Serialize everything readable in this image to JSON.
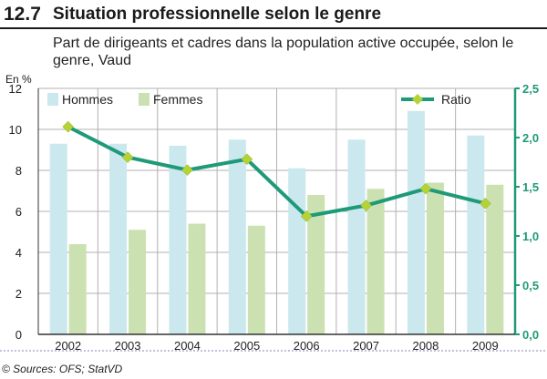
{
  "header": {
    "number": "12.7",
    "title": "Situation professionnelle selon le genre"
  },
  "subtitle": "Part de dirigeants et cadres dans la population active occupée, selon le genre, Vaud",
  "unit": "En %",
  "source": "© Sources: OFS; StatVD",
  "colors": {
    "hommes": "#cbe8ef",
    "femmes": "#cbe1b1",
    "ratio_line": "#1f9a78",
    "ratio_marker": "#b5d334",
    "right_axis": "#1f9a78",
    "dotted_rule": "#8080c0"
  },
  "chart_data": {
    "type": "bar",
    "categories": [
      "2002",
      "2003",
      "2004",
      "2005",
      "2006",
      "2007",
      "2008",
      "2009"
    ],
    "series": [
      {
        "name": "Hommes",
        "axis": "left",
        "values": [
          9.3,
          9.3,
          9.2,
          9.5,
          8.1,
          9.5,
          10.9,
          9.7
        ]
      },
      {
        "name": "Femmes",
        "axis": "left",
        "values": [
          4.4,
          5.1,
          5.4,
          5.3,
          6.8,
          7.1,
          7.4,
          7.3
        ]
      },
      {
        "name": "Ratio",
        "type": "line",
        "axis": "right",
        "values": [
          2.11,
          1.8,
          1.67,
          1.78,
          1.2,
          1.31,
          1.48,
          1.33
        ]
      }
    ],
    "y_left": {
      "min": 0,
      "max": 12,
      "ticks": [
        "0",
        "2",
        "4",
        "6",
        "8",
        "10",
        "12"
      ]
    },
    "y_right": {
      "min": 0,
      "max": 2.5,
      "ticks": [
        "0,0",
        "0,5",
        "1,0",
        "1,5",
        "2,0",
        "2,5"
      ]
    },
    "grid": true,
    "legend": "top"
  }
}
